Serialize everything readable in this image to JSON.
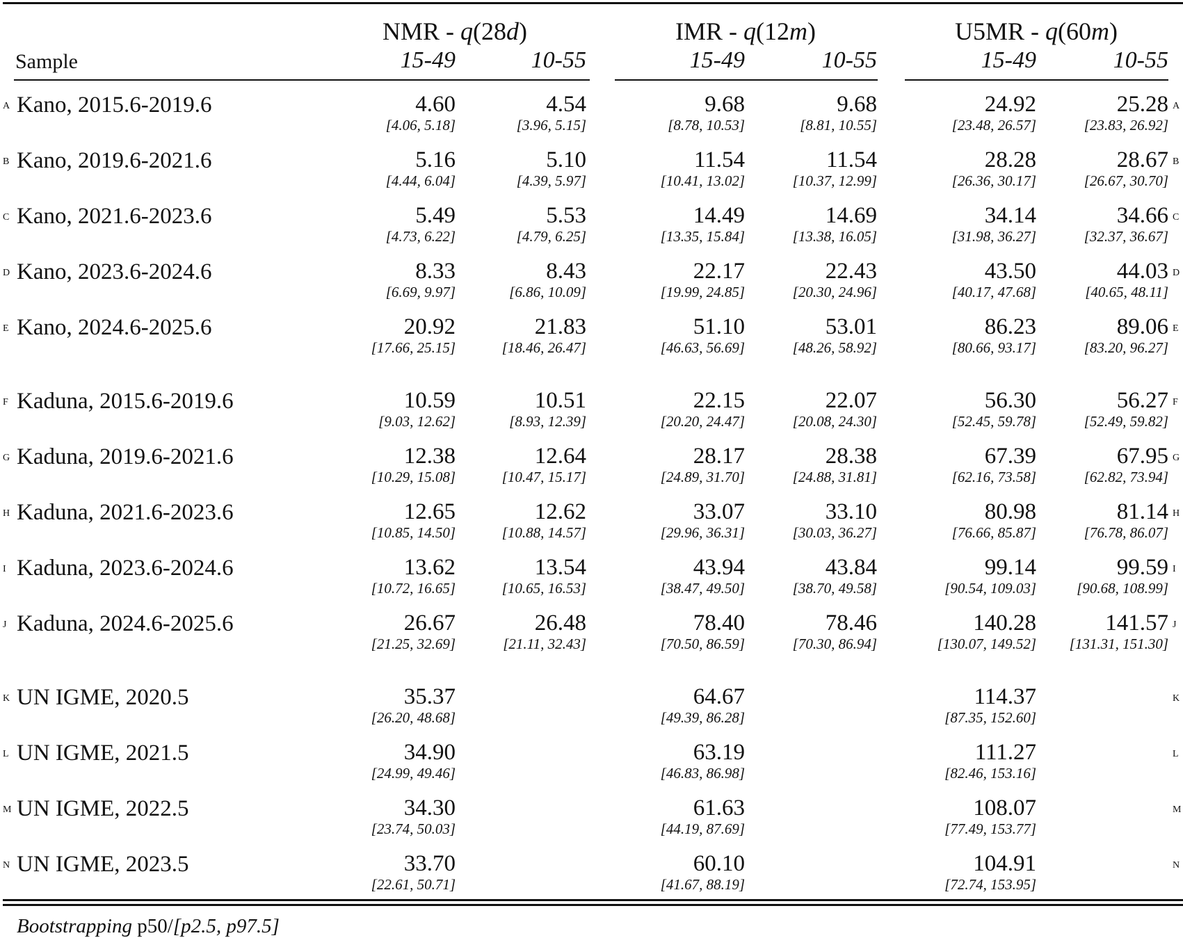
{
  "table": {
    "header": {
      "sample": "Sample",
      "groups": [
        {
          "prefix": "NMR - ",
          "q": "q",
          "arg_open": "(28",
          "arg_unit": "d",
          "arg_close": ")"
        },
        {
          "prefix": "IMR - ",
          "q": "q",
          "arg_open": "(12",
          "arg_unit": "m",
          "arg_close": ")"
        },
        {
          "prefix": "U5MR - ",
          "q": "q",
          "arg_open": "(60",
          "arg_unit": "m",
          "arg_close": ")"
        }
      ],
      "subcols": [
        "15-49",
        "10-55"
      ]
    },
    "rows": [
      {
        "letter": "A",
        "label": "Kano, 2015.6-2019.6",
        "cells": [
          [
            "4.60",
            "[4.06, 5.18]"
          ],
          [
            "4.54",
            "[3.96, 5.15]"
          ],
          [
            "9.68",
            "[8.78, 10.53]"
          ],
          [
            "9.68",
            "[8.81, 10.55]"
          ],
          [
            "24.92",
            "[23.48, 26.57]"
          ],
          [
            "25.28",
            "[23.83, 26.92]"
          ]
        ]
      },
      {
        "letter": "B",
        "label": "Kano, 2019.6-2021.6",
        "cells": [
          [
            "5.16",
            "[4.44, 6.04]"
          ],
          [
            "5.10",
            "[4.39, 5.97]"
          ],
          [
            "11.54",
            "[10.41, 13.02]"
          ],
          [
            "11.54",
            "[10.37, 12.99]"
          ],
          [
            "28.28",
            "[26.36, 30.17]"
          ],
          [
            "28.67",
            "[26.67, 30.70]"
          ]
        ]
      },
      {
        "letter": "C",
        "label": "Kano, 2021.6-2023.6",
        "cells": [
          [
            "5.49",
            "[4.73, 6.22]"
          ],
          [
            "5.53",
            "[4.79, 6.25]"
          ],
          [
            "14.49",
            "[13.35, 15.84]"
          ],
          [
            "14.69",
            "[13.38, 16.05]"
          ],
          [
            "34.14",
            "[31.98, 36.27]"
          ],
          [
            "34.66",
            "[32.37, 36.67]"
          ]
        ]
      },
      {
        "letter": "D",
        "label": "Kano, 2023.6-2024.6",
        "cells": [
          [
            "8.33",
            "[6.69, 9.97]"
          ],
          [
            "8.43",
            "[6.86, 10.09]"
          ],
          [
            "22.17",
            "[19.99, 24.85]"
          ],
          [
            "22.43",
            "[20.30, 24.96]"
          ],
          [
            "43.50",
            "[40.17, 47.68]"
          ],
          [
            "44.03",
            "[40.65, 48.11]"
          ]
        ]
      },
      {
        "letter": "E",
        "label": "Kano, 2024.6-2025.6",
        "cells": [
          [
            "20.92",
            "[17.66, 25.15]"
          ],
          [
            "21.83",
            "[18.46, 26.47]"
          ],
          [
            "51.10",
            "[46.63, 56.69]"
          ],
          [
            "53.01",
            "[48.26, 58.92]"
          ],
          [
            "86.23",
            "[80.66, 93.17]"
          ],
          [
            "89.06",
            "[83.20, 96.27]"
          ]
        ]
      },
      {
        "letter": "F",
        "label": "Kaduna, 2015.6-2019.6",
        "cells": [
          [
            "10.59",
            "[9.03, 12.62]"
          ],
          [
            "10.51",
            "[8.93, 12.39]"
          ],
          [
            "22.15",
            "[20.20, 24.47]"
          ],
          [
            "22.07",
            "[20.08, 24.30]"
          ],
          [
            "56.30",
            "[52.45, 59.78]"
          ],
          [
            "56.27",
            "[52.49, 59.82]"
          ]
        ]
      },
      {
        "letter": "G",
        "label": "Kaduna, 2019.6-2021.6",
        "cells": [
          [
            "12.38",
            "[10.29, 15.08]"
          ],
          [
            "12.64",
            "[10.47, 15.17]"
          ],
          [
            "28.17",
            "[24.89, 31.70]"
          ],
          [
            "28.38",
            "[24.88, 31.81]"
          ],
          [
            "67.39",
            "[62.16, 73.58]"
          ],
          [
            "67.95",
            "[62.82, 73.94]"
          ]
        ]
      },
      {
        "letter": "H",
        "label": "Kaduna, 2021.6-2023.6",
        "cells": [
          [
            "12.65",
            "[10.85, 14.50]"
          ],
          [
            "12.62",
            "[10.88, 14.57]"
          ],
          [
            "33.07",
            "[29.96, 36.31]"
          ],
          [
            "33.10",
            "[30.03, 36.27]"
          ],
          [
            "80.98",
            "[76.66, 85.87]"
          ],
          [
            "81.14",
            "[76.78, 86.07]"
          ]
        ]
      },
      {
        "letter": "I",
        "label": "Kaduna, 2023.6-2024.6",
        "cells": [
          [
            "13.62",
            "[10.72, 16.65]"
          ],
          [
            "13.54",
            "[10.65, 16.53]"
          ],
          [
            "43.94",
            "[38.47, 49.50]"
          ],
          [
            "43.84",
            "[38.70, 49.58]"
          ],
          [
            "99.14",
            "[90.54, 109.03]"
          ],
          [
            "99.59",
            "[90.68, 108.99]"
          ]
        ]
      },
      {
        "letter": "J",
        "label": "Kaduna, 2024.6-2025.6",
        "cells": [
          [
            "26.67",
            "[21.25, 32.69]"
          ],
          [
            "26.48",
            "[21.11, 32.43]"
          ],
          [
            "78.40",
            "[70.50, 86.59]"
          ],
          [
            "78.46",
            "[70.30, 86.94]"
          ],
          [
            "140.28",
            "[130.07, 149.52]"
          ],
          [
            "141.57",
            "[131.31, 151.30]"
          ]
        ]
      },
      {
        "letter": "K",
        "label": "UN IGME, 2020.5",
        "cells": [
          [
            "35.37",
            "[26.20, 48.68]"
          ],
          null,
          [
            "64.67",
            "[49.39, 86.28]"
          ],
          null,
          [
            "114.37",
            "[87.35, 152.60]"
          ],
          null
        ]
      },
      {
        "letter": "L",
        "label": "UN IGME, 2021.5",
        "cells": [
          [
            "34.90",
            "[24.99, 49.46]"
          ],
          null,
          [
            "63.19",
            "[46.83, 86.98]"
          ],
          null,
          [
            "111.27",
            "[82.46, 153.16]"
          ],
          null
        ]
      },
      {
        "letter": "M",
        "label": "UN IGME, 2022.5",
        "cells": [
          [
            "34.30",
            "[23.74, 50.03]"
          ],
          null,
          [
            "61.63",
            "[44.19, 87.69]"
          ],
          null,
          [
            "108.07",
            "[77.49, 153.77]"
          ],
          null
        ]
      },
      {
        "letter": "N",
        "label": "UN IGME, 2023.5",
        "cells": [
          [
            "33.70",
            "[22.61, 50.71]"
          ],
          null,
          [
            "60.10",
            "[41.67, 88.19]"
          ],
          null,
          [
            "104.91",
            "[72.74, 153.95]"
          ],
          null
        ]
      }
    ]
  },
  "footnote": {
    "italic_lead": "Bootstrapping",
    "plain": " p50/",
    "italic_tail": "[p2.5, p97.5]"
  }
}
